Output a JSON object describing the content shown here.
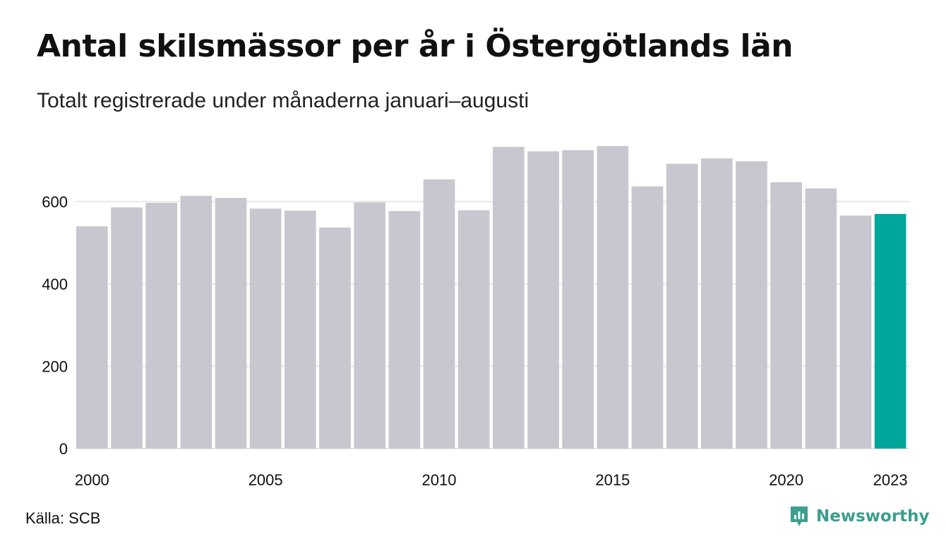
{
  "title": "Antal skilsmässor per år i Östergötlands län",
  "subtitle": "Totalt registrerade under månaderna januari–augusti",
  "source": "Källa: SCB",
  "brand": {
    "name": "Newsworthy",
    "icon": "newsworthy-logo-icon",
    "color": "#3b9e8f"
  },
  "colors": {
    "bar": "#c8c7cf",
    "highlight": "#00a59b",
    "grid": "#e6e6ea"
  },
  "chart_data": {
    "type": "bar",
    "categories": [
      "2000",
      "2001",
      "2002",
      "2003",
      "2004",
      "2005",
      "2006",
      "2007",
      "2008",
      "2009",
      "2010",
      "2011",
      "2012",
      "2013",
      "2014",
      "2015",
      "2016",
      "2017",
      "2018",
      "2019",
      "2020",
      "2021",
      "2022",
      "2023"
    ],
    "values": [
      540,
      586,
      597,
      614,
      609,
      583,
      578,
      537,
      598,
      577,
      654,
      579,
      733,
      722,
      725,
      735,
      637,
      692,
      705,
      698,
      647,
      632,
      566,
      570
    ],
    "x_tick_labels": [
      "2000",
      "2005",
      "2010",
      "2015",
      "2020",
      "2023"
    ],
    "y_ticks": [
      0,
      200,
      400,
      600
    ],
    "ylim": [
      0,
      750
    ],
    "highlight_category": "2023",
    "grid": true,
    "xlabel": "",
    "ylabel": ""
  }
}
